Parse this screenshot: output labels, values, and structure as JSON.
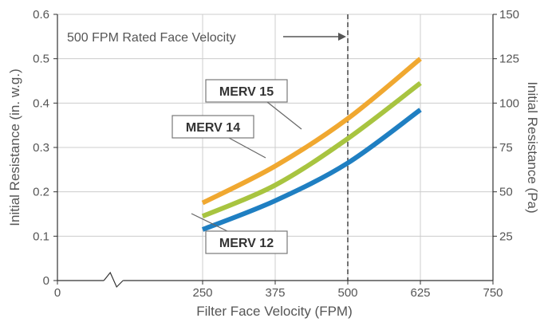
{
  "chart_data": {
    "type": "line",
    "xlabel": "Filter Face Velocity (FPM)",
    "ylabel": "Initial Resistance (in. w.g.)",
    "y2label": "Initial Resistance (Pa)",
    "xlim": [
      0,
      750
    ],
    "ylim": [
      0,
      0.6
    ],
    "y2lim": [
      0,
      150
    ],
    "x_ticks": [
      "0",
      "250",
      "375",
      "500",
      "625",
      "750"
    ],
    "y_ticks": [
      "0",
      "0.1",
      "0.2",
      "0.3",
      "0.4",
      "0.5",
      "0.6"
    ],
    "y2_ticks": [
      "25",
      "50",
      "75",
      "100",
      "125",
      "150"
    ],
    "axis_break": "x-axis between 0 and 250",
    "grid": true,
    "reference_line": {
      "x": 500,
      "label": "500 FPM Rated Face Velocity"
    },
    "series": [
      {
        "name": "MERV 15",
        "color": "#f0a830",
        "x": [
          250,
          375,
          500,
          625
        ],
        "y": [
          0.175,
          0.258,
          0.365,
          0.5
        ]
      },
      {
        "name": "MERV 14",
        "color": "#a8c440",
        "x": [
          250,
          375,
          500,
          625
        ],
        "y": [
          0.145,
          0.215,
          0.32,
          0.445
        ]
      },
      {
        "name": "MERV 12",
        "color": "#1f7fc2",
        "x": [
          250,
          375,
          500,
          625
        ],
        "y": [
          0.115,
          0.18,
          0.265,
          0.385
        ]
      }
    ]
  }
}
